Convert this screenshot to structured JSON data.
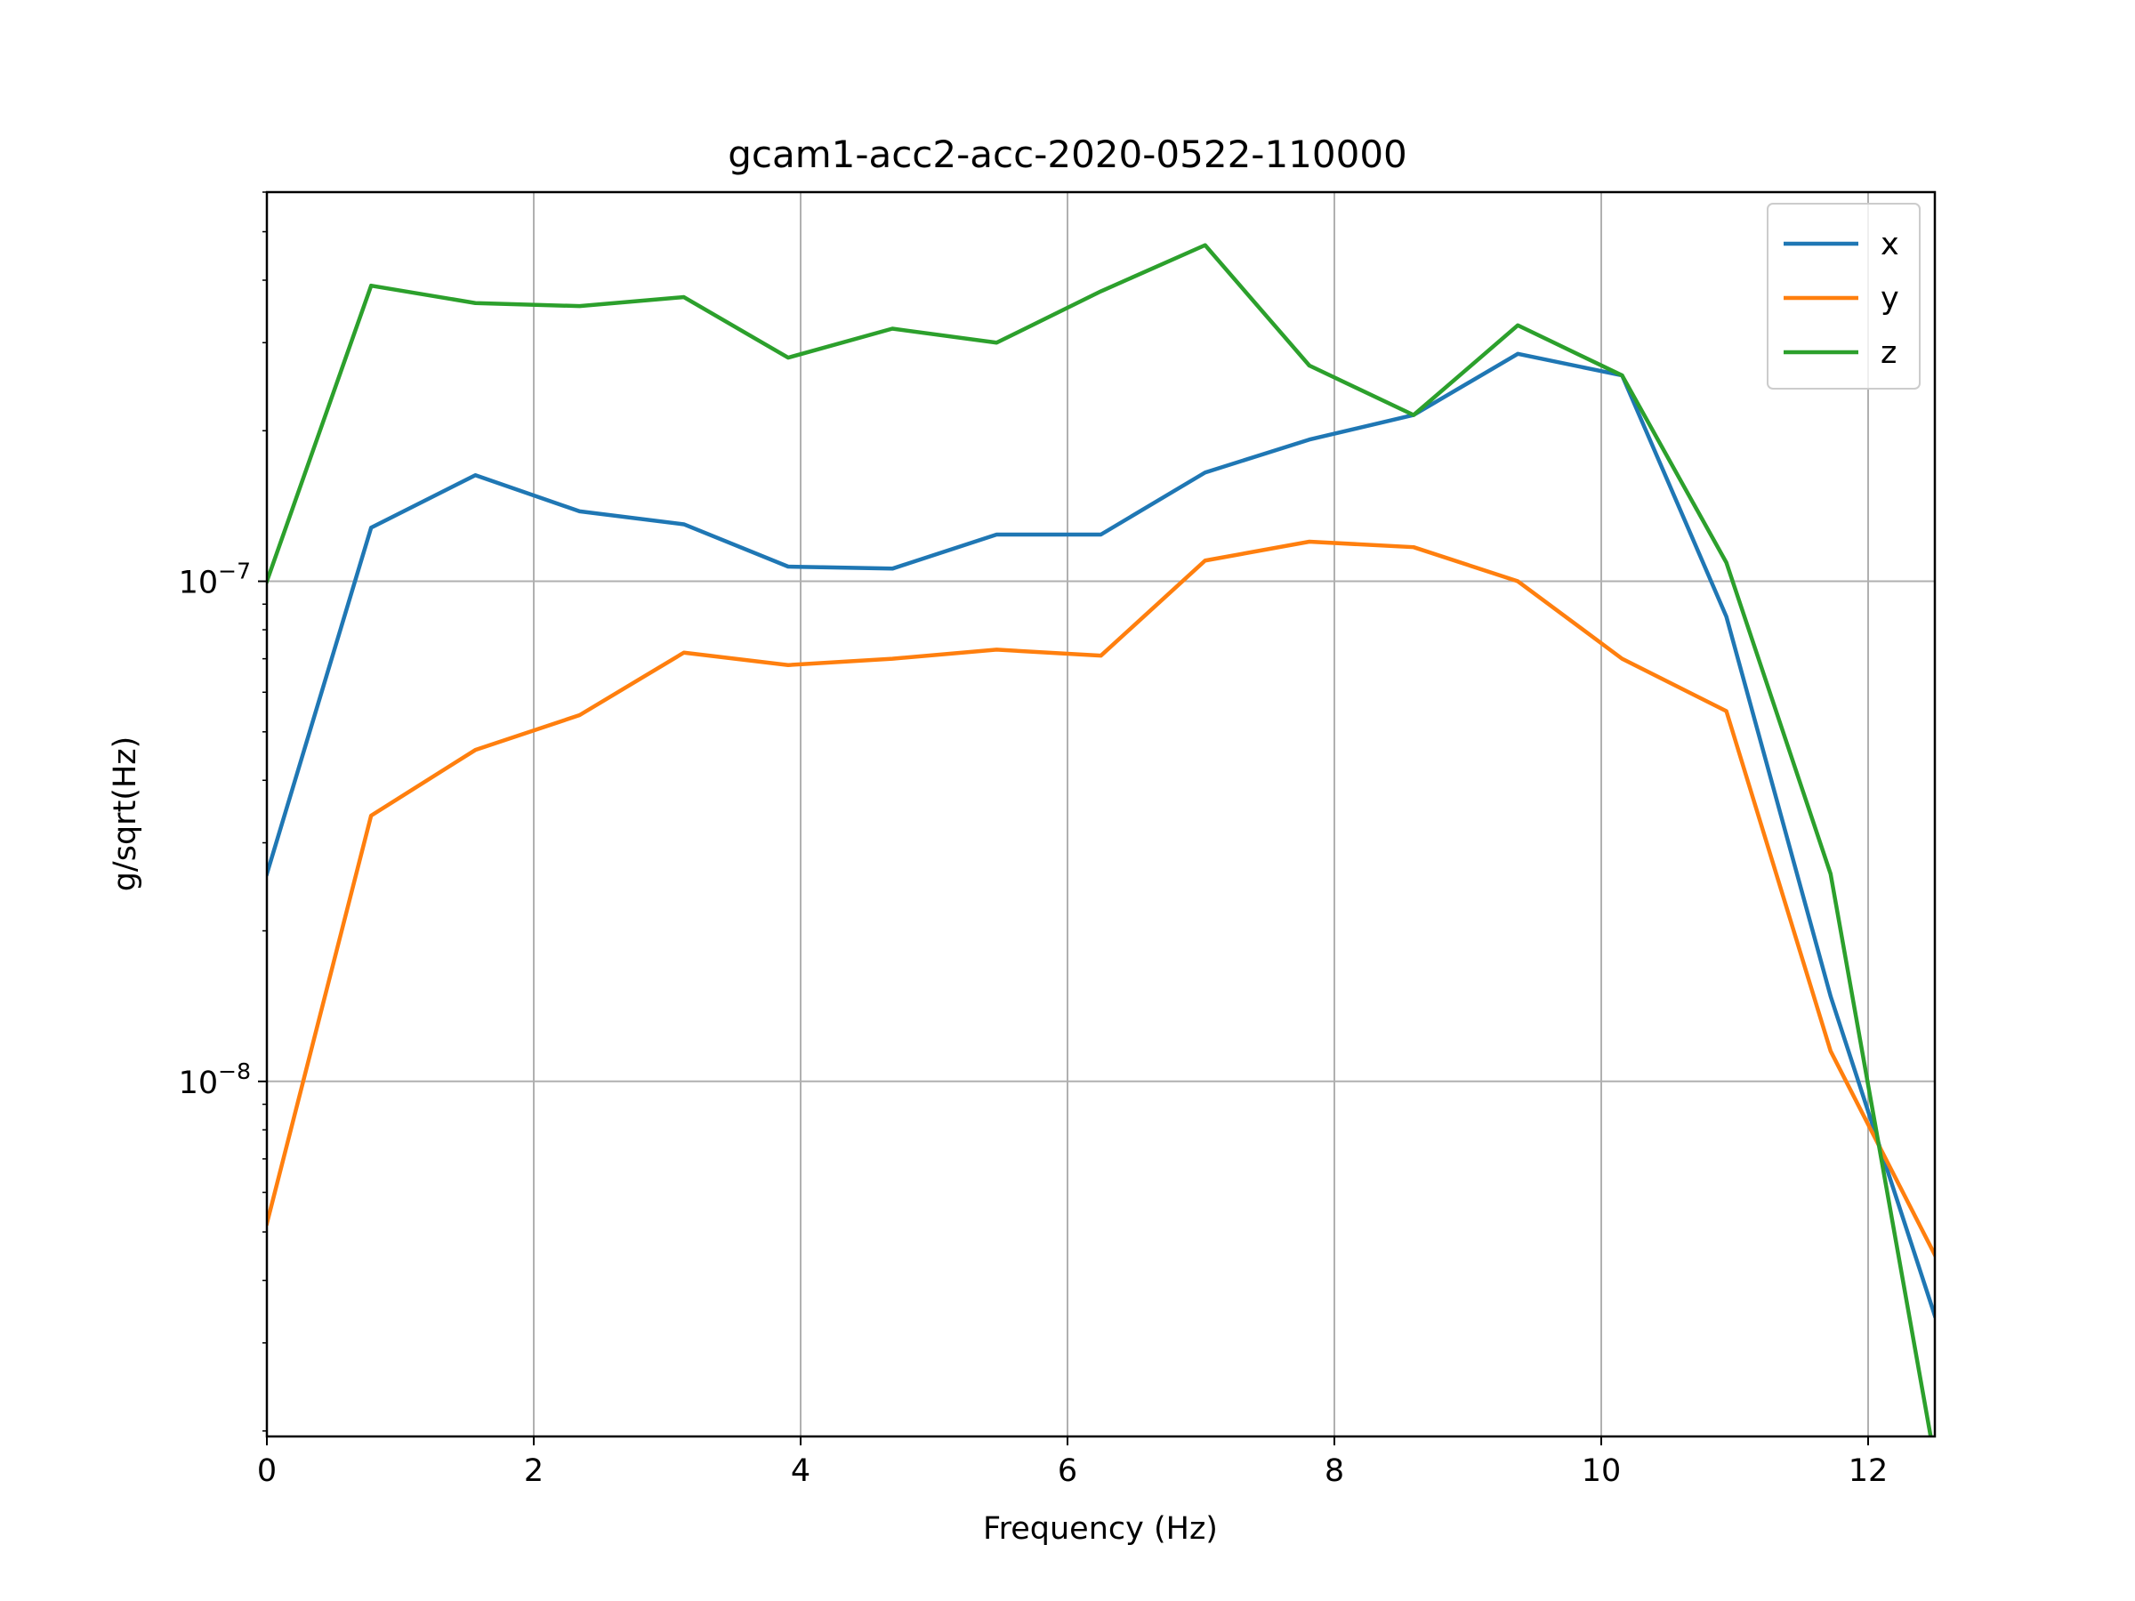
{
  "chart_data": {
    "type": "line",
    "title": "gcam1-acc2-acc-2020-0522-110000",
    "xlabel": "Frequency (Hz)",
    "ylabel": "g/sqrt(Hz)",
    "xlim": [
      0,
      12.5
    ],
    "ylim": [
      1.95e-09,
      6e-07
    ],
    "yscale": "log",
    "grid": true,
    "legend_position": "top-right",
    "x_ticks": [
      0,
      2,
      4,
      6,
      8,
      10,
      12
    ],
    "x_tick_labels": [
      "0",
      "2",
      "4",
      "6",
      "8",
      "10",
      "12"
    ],
    "y_ticks": [
      1e-08,
      1e-07
    ],
    "y_tick_labels": [
      {
        "base": "10",
        "exp": "−8"
      },
      {
        "base": "10",
        "exp": "−7"
      }
    ],
    "x": [
      0,
      0.78125,
      1.5625,
      2.34375,
      3.125,
      3.90625,
      4.6875,
      5.46875,
      6.25,
      7.03125,
      7.8125,
      8.59375,
      9.375,
      10.15625,
      10.9375,
      11.71875,
      12.5
    ],
    "series": [
      {
        "name": "x",
        "color": "#1f77b4",
        "values": [
          2.6e-08,
          1.28e-07,
          1.63e-07,
          1.38e-07,
          1.3e-07,
          1.07e-07,
          1.06e-07,
          1.24e-07,
          1.24e-07,
          1.65e-07,
          1.92e-07,
          2.15e-07,
          2.85e-07,
          2.58e-07,
          8.5e-08,
          1.48e-08,
          3.4e-09
        ]
      },
      {
        "name": "y",
        "color": "#ff7f0e",
        "values": [
          5.2e-09,
          3.4e-08,
          4.6e-08,
          5.4e-08,
          7.2e-08,
          6.8e-08,
          7e-08,
          7.3e-08,
          7.1e-08,
          1.1e-07,
          1.2e-07,
          1.17e-07,
          1e-07,
          7e-08,
          5.5e-08,
          1.15e-08,
          4.5e-09
        ]
      },
      {
        "name": "z",
        "color": "#2ca02c",
        "values": [
          1e-07,
          3.9e-07,
          3.6e-07,
          3.55e-07,
          3.7e-07,
          2.8e-07,
          3.2e-07,
          3e-07,
          3.8e-07,
          4.7e-07,
          2.7e-07,
          2.15e-07,
          3.25e-07,
          2.58e-07,
          1.09e-07,
          2.6e-08,
          1.75e-09
        ]
      }
    ]
  }
}
